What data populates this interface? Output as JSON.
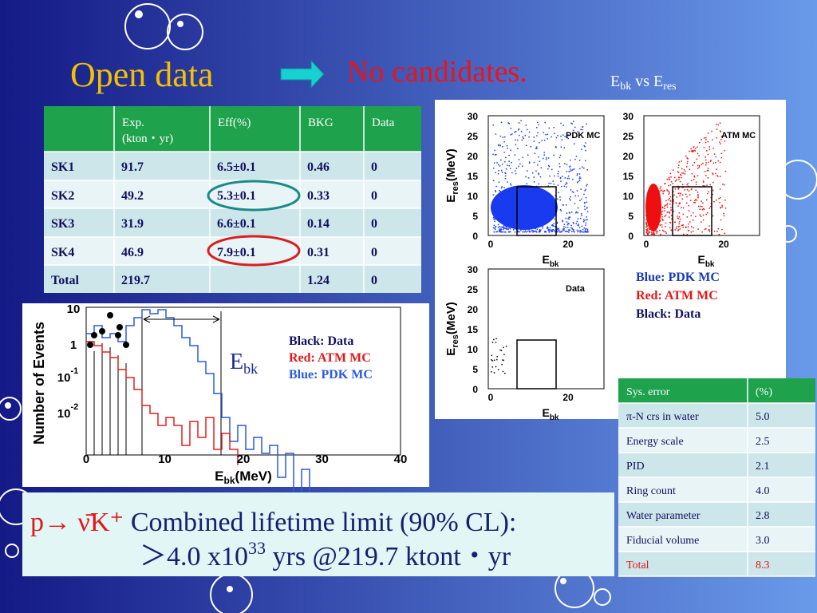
{
  "header": {
    "title": "Open data",
    "result": "No candidates.",
    "plot_heading": [
      "E",
      "bk",
      " vs E",
      "res"
    ]
  },
  "table": {
    "header": [
      [
        "Exp.",
        "(kton・yr)"
      ],
      "Eff(%)",
      "BKG",
      "Data"
    ],
    "rows": [
      [
        "SK1",
        "91.7",
        "6.5±0.1",
        "0.46",
        "0"
      ],
      [
        "SK2",
        "49.2",
        "5.3±0.1",
        "0.33",
        "0"
      ],
      [
        "SK3",
        "31.9",
        "6.6±0.1",
        "0.14",
        "0"
      ],
      [
        "SK4",
        "46.9",
        "7.9±0.1",
        "0.31",
        "0"
      ],
      [
        "Total",
        "219.7",
        null,
        "1.24",
        "0"
      ]
    ]
  },
  "histogram": {
    "ylabel": "Number of Events",
    "xlabel": [
      "E",
      "bk",
      "(MeV)"
    ],
    "yticks": [
      [
        "10",
        null
      ],
      [
        "1",
        null
      ],
      [
        "10",
        "-1"
      ],
      [
        "10",
        "-2"
      ]
    ],
    "xticks": [
      "0",
      "10",
      "20",
      "30",
      "40"
    ],
    "legend": [
      "Black: Data",
      "Red: ATM MC",
      "Blue: PDK MC"
    ],
    "annotation": [
      "E",
      "bk"
    ]
  },
  "scatter": {
    "ylabel": [
      "E",
      "res",
      "(MeV)"
    ],
    "xlabel": [
      "E",
      "bk"
    ],
    "yticks": [
      "30",
      "25",
      "20",
      "15",
      "10",
      "5",
      "0"
    ],
    "xticks": [
      "0",
      "20"
    ],
    "panels": [
      "PDK MC",
      "ATM MC",
      "Data"
    ],
    "legend": [
      "Blue: PDK MC",
      "Red: ATM MC",
      "Black: Data"
    ]
  },
  "sys_table": {
    "header": [
      "Sys. error",
      "(%)"
    ],
    "rows": [
      [
        "π-N crs in water",
        "5.0"
      ],
      [
        "Energy scale",
        "2.5"
      ],
      [
        "PID",
        "2.1"
      ],
      [
        "Ring count",
        "4.0"
      ],
      [
        "Water parameter",
        "2.8"
      ],
      [
        "Fiducial volume",
        "3.0"
      ],
      [
        "Total",
        "8.3"
      ]
    ]
  },
  "conclusion": {
    "line1": [
      "p→ ν̄K⁺",
      " Combined lifetime limit (90% CL):"
    ],
    "line2": [
      "＞4.0 x10",
      "33",
      " yrs @219.7 ktont・yr"
    ]
  }
}
